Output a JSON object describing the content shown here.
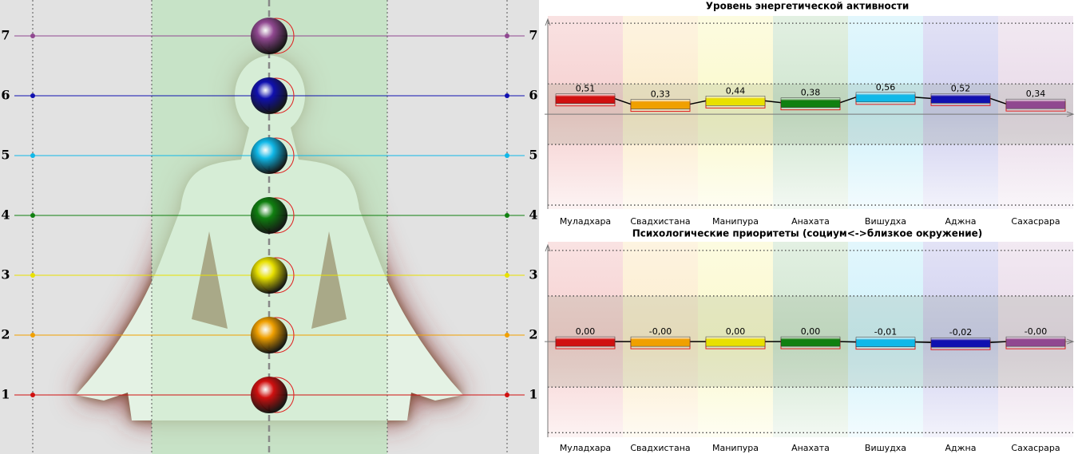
{
  "figure": {
    "levels": [
      "1",
      "2",
      "3",
      "4",
      "5",
      "6",
      "7"
    ]
  },
  "chart_data": [
    {
      "type": "bar",
      "title": "Уровень энергетической активности",
      "categories": [
        "Муладхара",
        "Свадхистана",
        "Манипура",
        "Анахата",
        "Вишудха",
        "Аджна",
        "Сахасрара"
      ],
      "values": [
        0.51,
        0.33,
        0.44,
        0.38,
        0.56,
        0.52,
        0.34
      ],
      "value_labels": [
        "0,51",
        "0,33",
        "0,44",
        "0,38",
        "0,56",
        "0,52",
        "0,34"
      ],
      "colors": [
        "#d01010",
        "#f0a000",
        "#e8e000",
        "#108010",
        "#10b8e8",
        "#1010b0",
        "#904890"
      ],
      "ylim": [
        -3.13,
        3.24
      ],
      "yticks": [
        -3,
        -1,
        1,
        3
      ],
      "grid": true
    },
    {
      "type": "bar",
      "title": "Психологические приоритеты (социум<->близкое окружение)",
      "categories": [
        "Муладхара",
        "Свадхистана",
        "Манипура",
        "Анахата",
        "Вишудха",
        "Аджна",
        "Сахасрара"
      ],
      "values": [
        0,
        -0.001,
        0,
        0,
        -0.01,
        -0.02,
        -0.001
      ],
      "value_labels": [
        "0,00",
        "-0,00",
        "0,00",
        "0,00",
        "-0,01",
        "-0,02",
        "-0,00"
      ],
      "colors": [
        "#d01010",
        "#f0a000",
        "#e8e000",
        "#108010",
        "#10b8e8",
        "#1010b0",
        "#904890"
      ],
      "ylim": [
        -2.1,
        2.19
      ],
      "yticks": [
        -2,
        -1,
        1,
        2
      ],
      "grid": true
    }
  ]
}
